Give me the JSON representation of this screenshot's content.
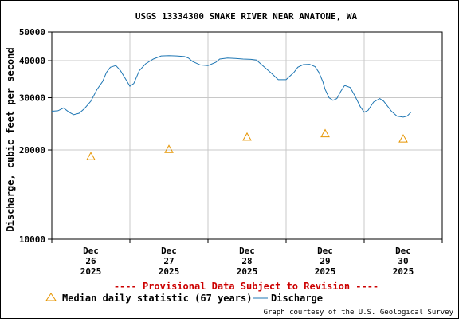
{
  "chart_data": {
    "type": "line",
    "title": "USGS 13334300 SNAKE RIVER NEAR ANATONE, WA",
    "ylabel": "Discharge, cubic feet per second",
    "y_scale": "log",
    "ylim": [
      10000,
      50000
    ],
    "y_ticks": [
      {
        "value": 10000,
        "label": "10000"
      },
      {
        "value": 20000,
        "label": "20000"
      },
      {
        "value": 30000,
        "label": "30000"
      },
      {
        "value": 40000,
        "label": "40000"
      },
      {
        "value": 50000,
        "label": "50000"
      }
    ],
    "xlim": [
      25.5,
      30.5
    ],
    "x_ticks": [
      {
        "day": 26,
        "month": "Dec",
        "day_label": "26",
        "year": "2025"
      },
      {
        "day": 27,
        "month": "Dec",
        "day_label": "27",
        "year": "2025"
      },
      {
        "day": 28,
        "month": "Dec",
        "day_label": "28",
        "year": "2025"
      },
      {
        "day": 29,
        "month": "Dec",
        "day_label": "29",
        "year": "2025"
      },
      {
        "day": 30,
        "month": "Dec",
        "day_label": "30",
        "year": "2025"
      }
    ],
    "grid": true,
    "series": [
      {
        "name": "Discharge",
        "kind": "line",
        "color": "#1f77b4",
        "x": [
          25.5,
          25.58,
          25.65,
          25.72,
          25.78,
          25.85,
          25.92,
          26.0,
          26.08,
          26.15,
          26.2,
          26.25,
          26.32,
          26.38,
          26.45,
          26.5,
          26.55,
          26.62,
          26.7,
          26.8,
          26.9,
          27.0,
          27.1,
          27.2,
          27.25,
          27.3,
          27.4,
          27.5,
          27.6,
          27.65,
          27.75,
          27.85,
          27.95,
          28.05,
          28.12,
          28.2,
          28.3,
          28.4,
          28.5,
          28.6,
          28.65,
          28.72,
          28.8,
          28.87,
          28.92,
          28.97,
          29.0,
          29.05,
          29.1,
          29.15,
          29.2,
          29.25,
          29.32,
          29.38,
          29.45,
          29.5,
          29.55,
          29.62,
          29.7,
          29.75,
          29.85,
          29.92,
          30.0,
          30.05,
          30.1
        ],
        "y": [
          27000,
          27100,
          27700,
          26800,
          26300,
          26600,
          27600,
          29200,
          32000,
          34000,
          36500,
          38000,
          38500,
          37000,
          34500,
          32800,
          33500,
          37000,
          39000,
          40500,
          41500,
          41600,
          41500,
          41300,
          40800,
          39800,
          38700,
          38500,
          39500,
          40500,
          40800,
          40700,
          40500,
          40400,
          40200,
          38500,
          36500,
          34500,
          34500,
          36500,
          38000,
          38800,
          38900,
          38200,
          36500,
          34000,
          32000,
          30000,
          29400,
          29800,
          31500,
          33000,
          32500,
          30500,
          28000,
          26800,
          27200,
          29000,
          29800,
          29200,
          27000,
          26000,
          25800,
          26000,
          26800
        ]
      },
      {
        "name": "Median daily statistic (67 years)",
        "kind": "marker",
        "color": "#e69500",
        "x": [
          26,
          27,
          28,
          29,
          30
        ],
        "y": [
          19000,
          20100,
          22100,
          22700,
          21800
        ]
      }
    ],
    "legend": {
      "placement": "bottom",
      "items": [
        "Median daily statistic (67 years)",
        "Discharge"
      ]
    }
  },
  "notes": {
    "provisional": "---- Provisional Data Subject to Revision ----",
    "credit": "Graph courtesy of the U.S. Geological Survey"
  }
}
